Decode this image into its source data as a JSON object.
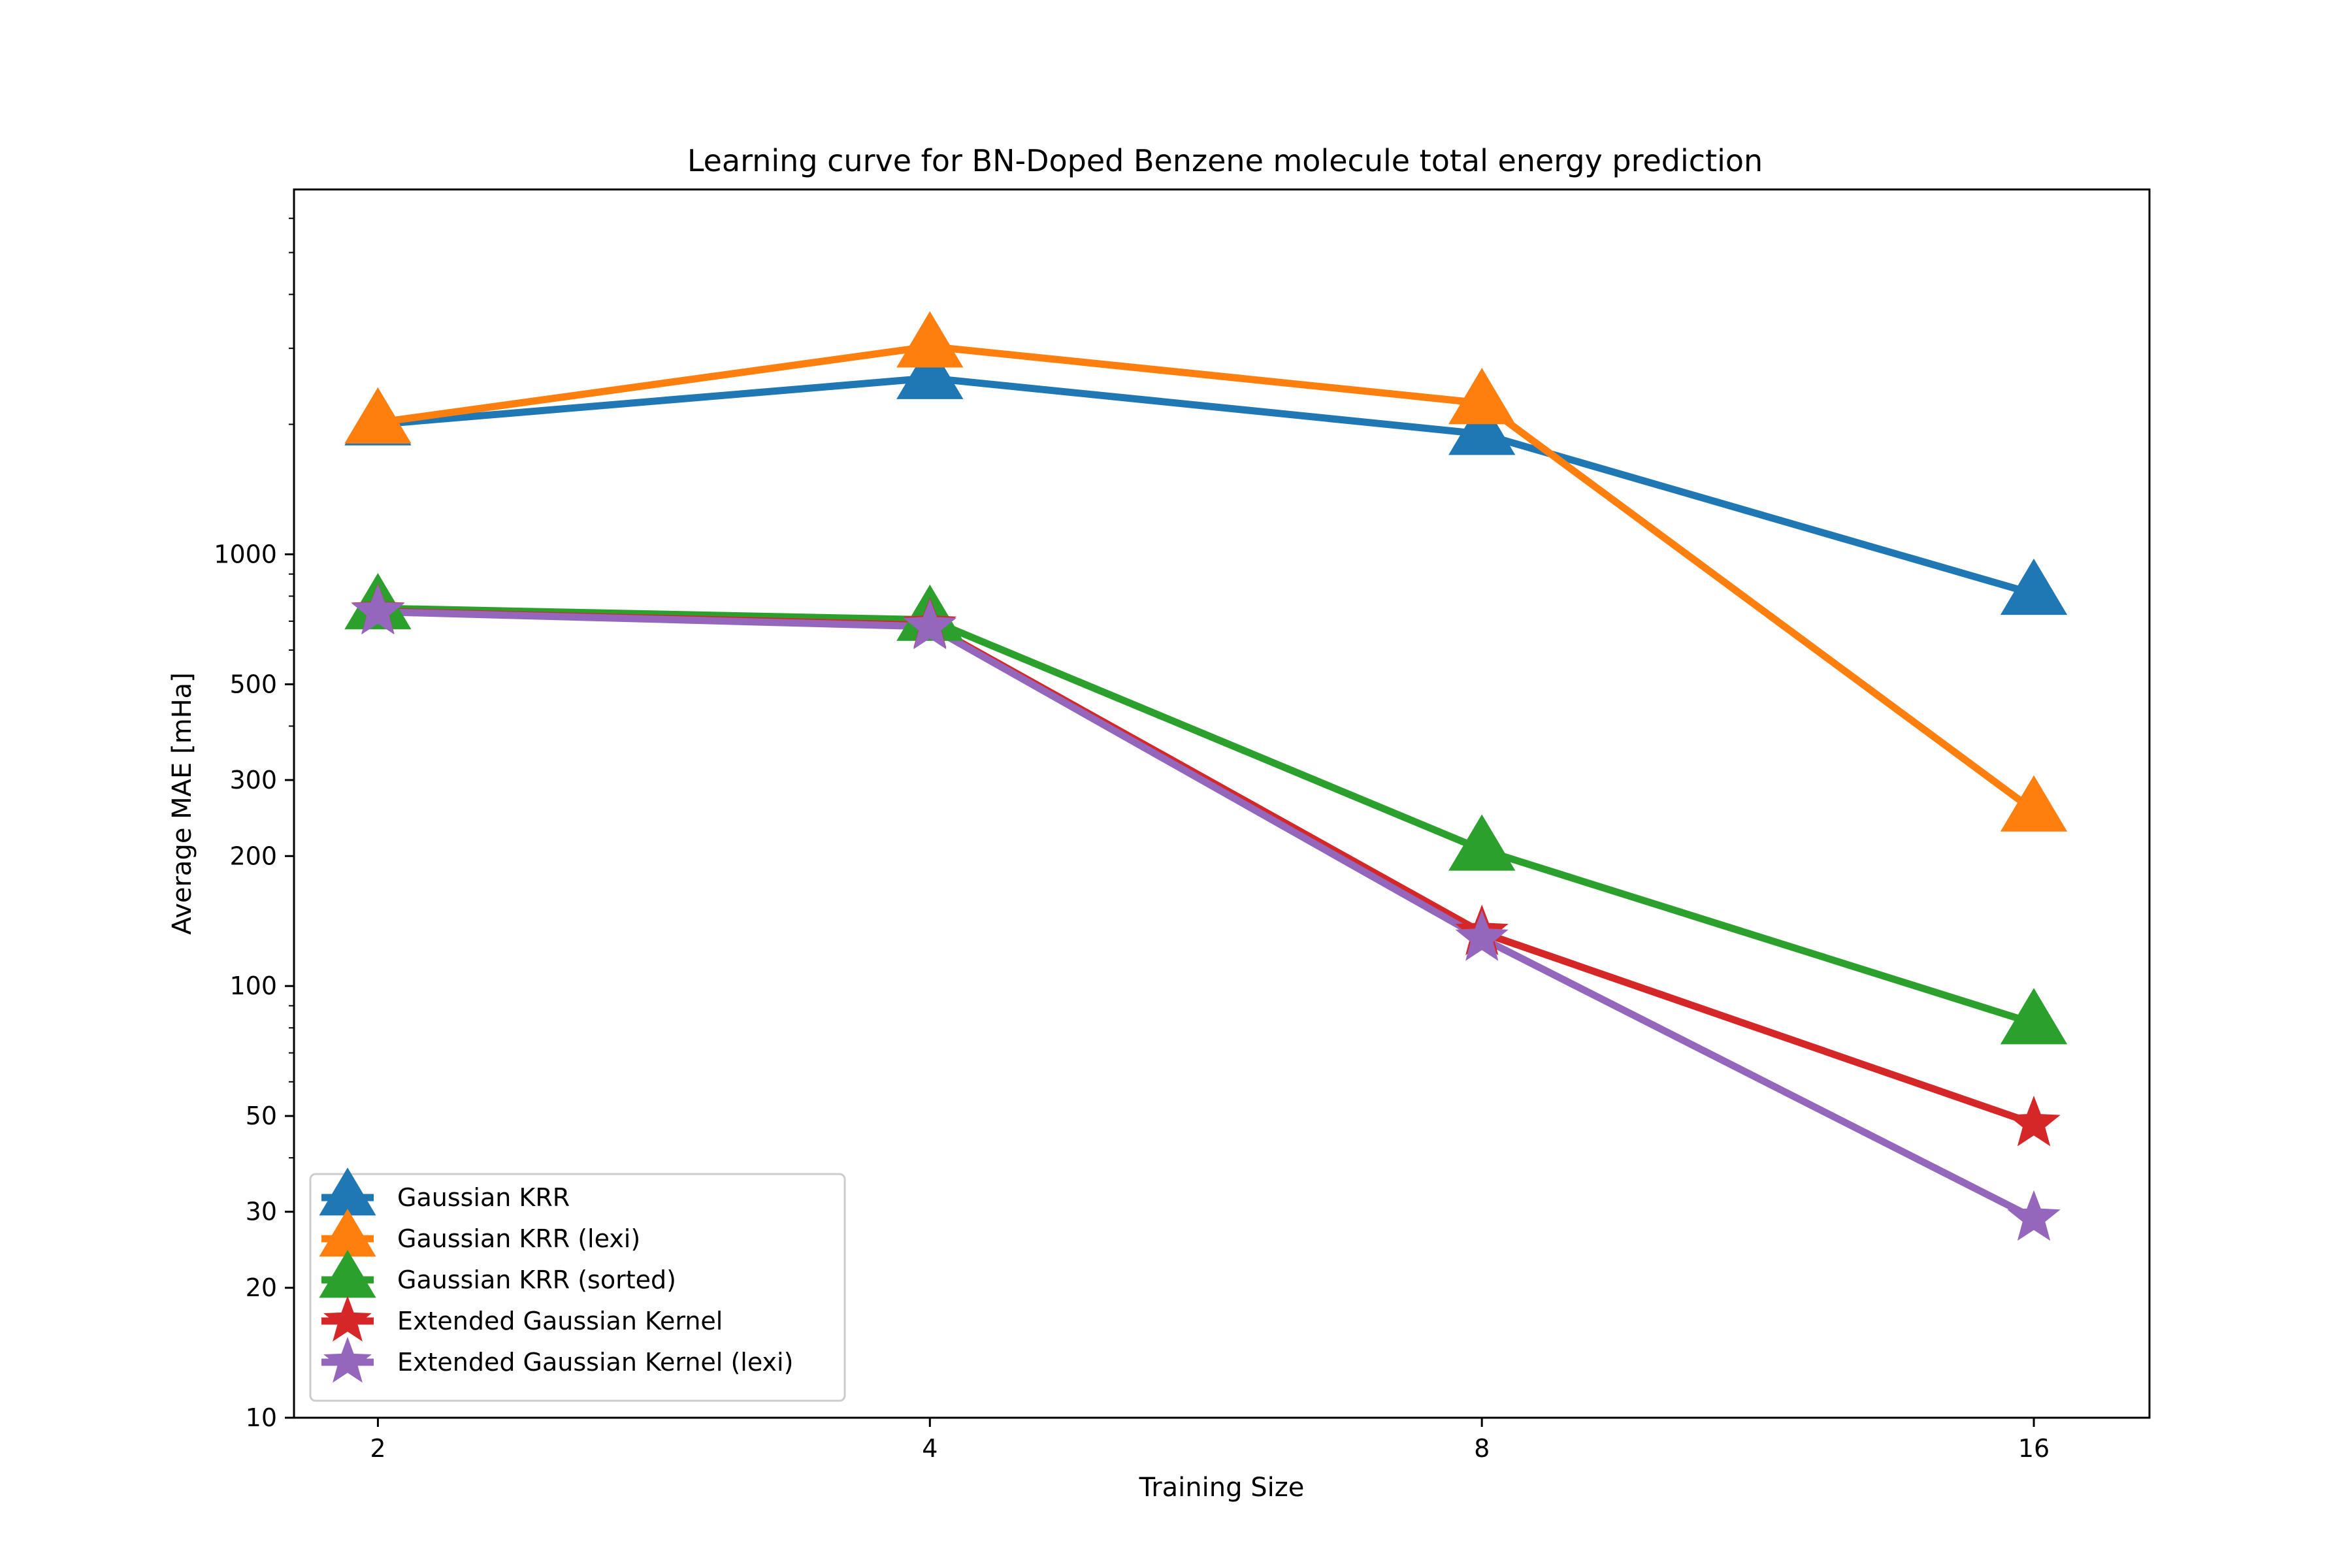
{
  "chart_data": {
    "type": "line",
    "title": "Learning curve for BN-Doped Benzene molecule total energy prediction",
    "xlabel": "Training Size",
    "ylabel": "Average MAE [mHa]",
    "x_scale": "log2",
    "y_scale": "log",
    "x": [
      2,
      4,
      8,
      16
    ],
    "x_ticks": [
      "2",
      "4",
      "8",
      "16"
    ],
    "xlim": [
      1.8,
      18.5
    ],
    "ylim": [
      10,
      7000
    ],
    "y_ticks": [
      {
        "value": 10,
        "label": "10"
      },
      {
        "value": 20,
        "label": "20"
      },
      {
        "value": 30,
        "label": "30"
      },
      {
        "value": 50,
        "label": "50"
      },
      {
        "value": 100,
        "label": "100"
      },
      {
        "value": 200,
        "label": "200"
      },
      {
        "value": 300,
        "label": "300"
      },
      {
        "value": 500,
        "label": "500"
      },
      {
        "value": 1000,
        "label": "1000"
      }
    ],
    "y_minor_ticks": [
      40,
      60,
      70,
      80,
      90,
      400,
      600,
      700,
      800,
      900,
      2000,
      3000,
      4000,
      5000,
      6000
    ],
    "grid": false,
    "legend_position": "lower-left",
    "series": [
      {
        "name": "Gaussian KRR",
        "color": "#1f77b4",
        "marker": "triangle",
        "values": [
          2000,
          2560,
          1900,
          810
        ]
      },
      {
        "name": "Gaussian KRR (lexi)",
        "color": "#ff7f0e",
        "marker": "triangle",
        "values": [
          2020,
          3030,
          2240,
          255
        ]
      },
      {
        "name": "Gaussian KRR (sorted)",
        "color": "#2ca02c",
        "marker": "triangle",
        "values": [
          750,
          705,
          207,
          82
        ]
      },
      {
        "name": "Extended Gaussian Kernel",
        "color": "#d62728",
        "marker": "star",
        "values": [
          738,
          685,
          133,
          48
        ]
      },
      {
        "name": "Extended Gaussian Kernel (lexi)",
        "color": "#9467bd",
        "marker": "star",
        "values": [
          736,
          680,
          129,
          29
        ]
      }
    ]
  }
}
